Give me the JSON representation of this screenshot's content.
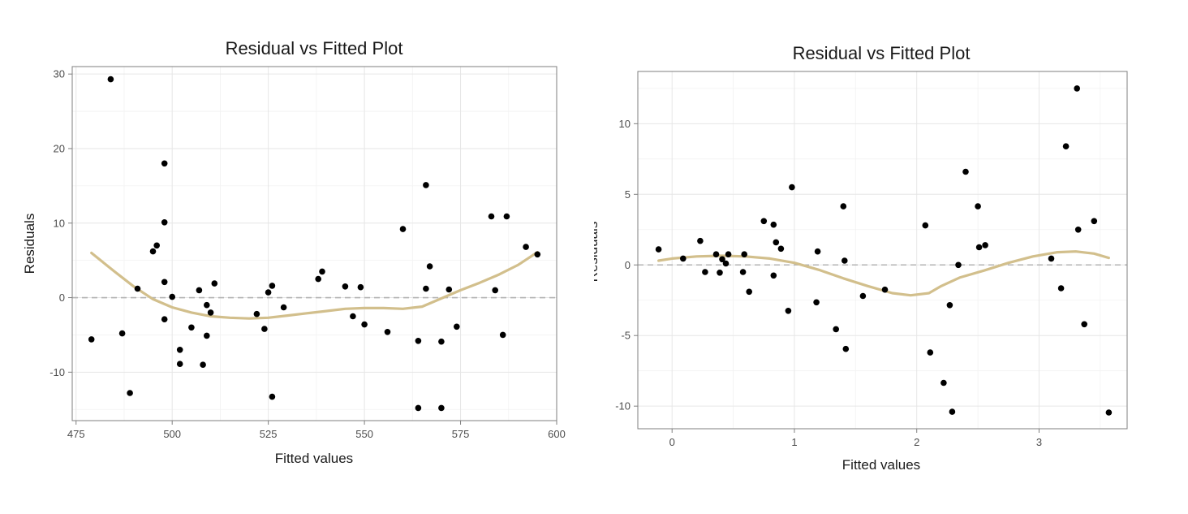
{
  "colors": {
    "smooth_line": "#d2bf8c",
    "points": "#000000",
    "reference_line": "#b3b3b3"
  },
  "chart_data": [
    {
      "type": "scatter",
      "title": "Residual vs Fitted Plot",
      "xlabel": "Fitted values",
      "ylabel": "Residuals",
      "xlim": [
        474,
        600
      ],
      "ylim": [
        -16.5,
        31
      ],
      "xticks": [
        475,
        500,
        525,
        550,
        575,
        600
      ],
      "xtick_labels": [
        "475",
        "500",
        "525",
        "550",
        "575",
        "600"
      ],
      "yticks": [
        -10,
        0,
        10,
        20,
        30
      ],
      "ytick_labels": [
        "-10",
        "0",
        "10",
        "20",
        "30"
      ],
      "grid": true,
      "reference_line_y": 0,
      "points": [
        [
          479,
          -5.6
        ],
        [
          484,
          29.3
        ],
        [
          487,
          -4.8
        ],
        [
          489,
          -12.8
        ],
        [
          491,
          1.2
        ],
        [
          495,
          6.2
        ],
        [
          496,
          7.0
        ],
        [
          498,
          18.0
        ],
        [
          498,
          10.1
        ],
        [
          498,
          2.1
        ],
        [
          498,
          -2.9
        ],
        [
          500,
          0.1
        ],
        [
          502,
          -7.0
        ],
        [
          502,
          -8.9
        ],
        [
          505,
          -4.0
        ],
        [
          507,
          1.0
        ],
        [
          508,
          -9.0
        ],
        [
          509,
          -1.0
        ],
        [
          509,
          -5.1
        ],
        [
          510,
          -2.0
        ],
        [
          511,
          1.9
        ],
        [
          522,
          -2.2
        ],
        [
          524,
          -4.2
        ],
        [
          525,
          0.7
        ],
        [
          526,
          1.6
        ],
        [
          526,
          -13.3
        ],
        [
          529,
          -1.3
        ],
        [
          538,
          2.5
        ],
        [
          539,
          3.5
        ],
        [
          545,
          1.5
        ],
        [
          547,
          -2.5
        ],
        [
          549,
          1.4
        ],
        [
          550,
          -3.6
        ],
        [
          556,
          -4.6
        ],
        [
          560,
          9.2
        ],
        [
          564,
          -5.8
        ],
        [
          564,
          -14.8
        ],
        [
          566,
          15.1
        ],
        [
          566,
          1.2
        ],
        [
          567,
          4.2
        ],
        [
          570,
          -5.9
        ],
        [
          570,
          -14.8
        ],
        [
          572,
          1.1
        ],
        [
          574,
          -3.9
        ],
        [
          583,
          10.9
        ],
        [
          584,
          1.0
        ],
        [
          586,
          -5.0
        ],
        [
          587,
          10.9
        ],
        [
          592,
          6.8
        ],
        [
          595,
          5.8
        ]
      ],
      "smooth_curve": [
        [
          479,
          6.0
        ],
        [
          485,
          3.5
        ],
        [
          490,
          1.5
        ],
        [
          495,
          -0.2
        ],
        [
          500,
          -1.3
        ],
        [
          505,
          -2.0
        ],
        [
          510,
          -2.5
        ],
        [
          515,
          -2.7
        ],
        [
          520,
          -2.8
        ],
        [
          525,
          -2.7
        ],
        [
          530,
          -2.4
        ],
        [
          535,
          -2.1
        ],
        [
          540,
          -1.8
        ],
        [
          545,
          -1.5
        ],
        [
          550,
          -1.4
        ],
        [
          555,
          -1.4
        ],
        [
          560,
          -1.5
        ],
        [
          565,
          -1.2
        ],
        [
          570,
          -0.1
        ],
        [
          575,
          1.0
        ],
        [
          580,
          2.0
        ],
        [
          585,
          3.1
        ],
        [
          590,
          4.4
        ],
        [
          595,
          6.1
        ]
      ]
    },
    {
      "type": "scatter",
      "title": "Residual vs Fitted Plot",
      "xlabel": "Fitted values",
      "ylabel": "Residuals",
      "xlim": [
        -0.28,
        3.72
      ],
      "ylim": [
        -11.6,
        13.7
      ],
      "xticks": [
        0,
        1,
        2,
        3
      ],
      "xtick_labels": [
        "0",
        "1",
        "2",
        "3"
      ],
      "yticks": [
        -10,
        -5,
        0,
        5,
        10
      ],
      "ytick_labels": [
        "-10",
        "-5",
        "0",
        "5",
        "10"
      ],
      "grid": true,
      "reference_line_y": 0,
      "points": [
        [
          -0.11,
          1.1
        ],
        [
          0.09,
          0.45
        ],
        [
          0.23,
          1.7
        ],
        [
          0.27,
          -0.5
        ],
        [
          0.36,
          0.75
        ],
        [
          0.39,
          -0.55
        ],
        [
          0.41,
          0.4
        ],
        [
          0.44,
          0.1
        ],
        [
          0.46,
          0.75
        ],
        [
          0.58,
          -0.5
        ],
        [
          0.59,
          0.75
        ],
        [
          0.63,
          -1.9
        ],
        [
          0.75,
          3.1
        ],
        [
          0.83,
          2.85
        ],
        [
          0.83,
          -0.75
        ],
        [
          0.85,
          1.6
        ],
        [
          0.89,
          1.15
        ],
        [
          0.95,
          -3.25
        ],
        [
          0.98,
          5.5
        ],
        [
          1.18,
          -2.65
        ],
        [
          1.19,
          0.95
        ],
        [
          1.34,
          -4.55
        ],
        [
          1.4,
          4.15
        ],
        [
          1.41,
          0.3
        ],
        [
          1.42,
          -5.95
        ],
        [
          1.56,
          -2.2
        ],
        [
          1.74,
          -1.75
        ],
        [
          2.07,
          2.8
        ],
        [
          2.11,
          -6.2
        ],
        [
          2.22,
          -8.35
        ],
        [
          2.27,
          -2.85
        ],
        [
          2.29,
          -10.4
        ],
        [
          2.34,
          0.0
        ],
        [
          2.4,
          6.6
        ],
        [
          2.5,
          4.15
        ],
        [
          2.51,
          1.25
        ],
        [
          2.56,
          1.4
        ],
        [
          3.1,
          0.45
        ],
        [
          3.18,
          -1.65
        ],
        [
          3.22,
          8.4
        ],
        [
          3.31,
          12.5
        ],
        [
          3.32,
          2.5
        ],
        [
          3.37,
          -4.2
        ],
        [
          3.45,
          3.1
        ],
        [
          3.57,
          -10.45
        ]
      ],
      "smooth_curve": [
        [
          -0.11,
          0.3
        ],
        [
          0.0,
          0.45
        ],
        [
          0.2,
          0.6
        ],
        [
          0.4,
          0.65
        ],
        [
          0.6,
          0.6
        ],
        [
          0.8,
          0.45
        ],
        [
          1.0,
          0.15
        ],
        [
          1.2,
          -0.35
        ],
        [
          1.4,
          -0.95
        ],
        [
          1.6,
          -1.5
        ],
        [
          1.8,
          -2.0
        ],
        [
          1.95,
          -2.15
        ],
        [
          2.1,
          -2.0
        ],
        [
          2.2,
          -1.5
        ],
        [
          2.35,
          -0.9
        ],
        [
          2.55,
          -0.4
        ],
        [
          2.75,
          0.15
        ],
        [
          2.95,
          0.6
        ],
        [
          3.15,
          0.9
        ],
        [
          3.3,
          0.95
        ],
        [
          3.45,
          0.8
        ],
        [
          3.57,
          0.5
        ]
      ]
    }
  ]
}
